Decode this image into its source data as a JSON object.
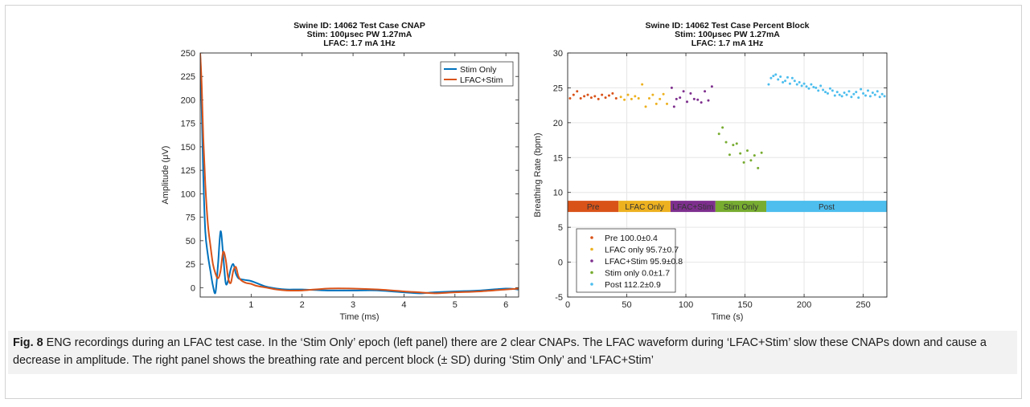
{
  "chart_data": [
    {
      "type": "line",
      "title_lines": [
        "Swine ID: 14062 Test Case CNAP",
        "Stim: 100μsec PW  1.27mA",
        "LFAC: 1.7 mA  1Hz"
      ],
      "xlabel": "Time (ms)",
      "ylabel": "Amplitude (μV)",
      "xlim": [
        0,
        6.25
      ],
      "ylim": [
        -10,
        250
      ],
      "xticks": [
        1,
        2,
        3,
        4,
        5,
        6
      ],
      "yticks": [
        0,
        25,
        50,
        75,
        100,
        125,
        150,
        175,
        200,
        225,
        250
      ],
      "grid": false,
      "legend_position": "top-right",
      "series": [
        {
          "name": "Stim Only",
          "color": "#0072bd",
          "x": [
            0,
            0.03,
            0.06,
            0.1,
            0.15,
            0.2,
            0.25,
            0.3,
            0.35,
            0.4,
            0.45,
            0.5,
            0.55,
            0.6,
            0.65,
            0.7,
            0.75,
            0.8,
            0.9,
            1.0,
            1.1,
            1.3,
            1.5,
            1.7,
            2.0,
            2.5,
            3.0,
            3.5,
            4.0,
            4.3,
            4.6,
            5.0,
            5.5,
            6.0,
            6.25
          ],
          "y": [
            248,
            190,
            120,
            60,
            35,
            18,
            2,
            -5,
            25,
            60,
            35,
            5,
            8,
            20,
            25,
            15,
            10,
            9,
            8,
            7,
            5,
            1,
            -1,
            -2,
            -2,
            -3,
            -3,
            -3,
            -5,
            -6,
            -5,
            -4,
            -3,
            -1,
            -2
          ]
        },
        {
          "name": "LFAC+Stim",
          "color": "#d95319",
          "x": [
            0,
            0.03,
            0.06,
            0.1,
            0.15,
            0.2,
            0.25,
            0.3,
            0.35,
            0.4,
            0.45,
            0.5,
            0.55,
            0.6,
            0.65,
            0.7,
            0.75,
            0.8,
            0.9,
            1.0,
            1.1,
            1.3,
            1.5,
            1.7,
            2.0,
            2.5,
            3.0,
            3.5,
            4.0,
            4.3,
            4.6,
            5.0,
            5.5,
            6.0,
            6.25
          ],
          "y": [
            250,
            215,
            160,
            110,
            68,
            45,
            25,
            15,
            10,
            18,
            38,
            30,
            10,
            5,
            18,
            22,
            12,
            8,
            5,
            4,
            2,
            0,
            -2,
            -3,
            -3,
            -1,
            -1,
            -2,
            -4,
            -5,
            -6,
            -5,
            -4,
            -2,
            -1
          ]
        }
      ]
    },
    {
      "type": "scatter",
      "title_lines": [
        "Swine ID: 14062 Test Case Percent Block",
        "Stim: 100μsec PW  1.27mA",
        "LFAC: 1.7 mA  1Hz"
      ],
      "xlabel": "Time (s)",
      "ylabel": "Breathing Rate (bpm)",
      "xlim": [
        0,
        270
      ],
      "ylim": [
        -5,
        30
      ],
      "xticks": [
        0,
        50,
        100,
        150,
        200,
        250
      ],
      "yticks": [
        -5,
        0,
        5,
        10,
        15,
        20,
        25,
        30
      ],
      "grid": true,
      "legend_position": "bottom-left",
      "epoch_bar": {
        "y": 8,
        "segments": [
          {
            "label": "Pre",
            "start": 0,
            "end": 43,
            "color": "#d95319"
          },
          {
            "label": "LFAC Only",
            "start": 43,
            "end": 87,
            "color": "#edb120"
          },
          {
            "label": "LFAC+Stim",
            "start": 87,
            "end": 125,
            "color": "#7e2f8e"
          },
          {
            "label": "Stim Only",
            "start": 125,
            "end": 168,
            "color": "#77ac30"
          },
          {
            "label": "Post",
            "start": 168,
            "end": 270,
            "color": "#4dbeee"
          }
        ]
      },
      "series": [
        {
          "name": "Pre 100.0±0.4",
          "color": "#d95319",
          "x": [
            2,
            5,
            8,
            11,
            14,
            17,
            20,
            23,
            26,
            29,
            32,
            35,
            38,
            41
          ],
          "y": [
            23.5,
            24.0,
            24.5,
            23.5,
            23.8,
            24.0,
            23.6,
            23.8,
            23.4,
            24.0,
            23.6,
            23.9,
            24.2,
            23.5
          ]
        },
        {
          "name": "LFAC only 95.7±0.7",
          "color": "#edb120",
          "x": [
            45,
            48,
            51,
            54,
            57,
            60,
            63,
            66,
            69,
            72,
            75,
            78,
            81,
            84
          ],
          "y": [
            23.7,
            23.3,
            24.0,
            23.4,
            23.8,
            23.5,
            25.5,
            22.3,
            23.5,
            24.0,
            22.7,
            23.4,
            24.1,
            22.7
          ]
        },
        {
          "name": "LFAC+Stim 95.9±0.8",
          "color": "#7e2f8e",
          "x": [
            88,
            90,
            92,
            95,
            98,
            101,
            104,
            107,
            110,
            113,
            116,
            119,
            122
          ],
          "y": [
            25.0,
            22.3,
            23.4,
            23.6,
            24.5,
            23.0,
            24.2,
            23.4,
            23.3,
            22.9,
            24.5,
            23.2,
            25.2
          ]
        },
        {
          "name": "Stim only 0.0±1.7",
          "color": "#77ac30",
          "x": [
            128,
            131,
            134,
            137,
            140,
            143,
            146,
            149,
            152,
            155,
            158,
            161,
            164
          ],
          "y": [
            18.4,
            19.3,
            17.2,
            15.4,
            16.8,
            17.0,
            15.6,
            14.3,
            16.0,
            14.6,
            15.3,
            13.5,
            15.7
          ]
        },
        {
          "name": "Post 112.2±0.9",
          "color": "#4dbeee",
          "x": [
            170,
            172,
            174,
            176,
            178,
            180,
            182,
            184,
            186,
            188,
            190,
            192,
            194,
            196,
            198,
            200,
            202,
            204,
            206,
            208,
            210,
            212,
            214,
            216,
            218,
            220,
            222,
            224,
            226,
            228,
            230,
            232,
            234,
            236,
            238,
            240,
            242,
            244,
            246,
            248,
            250,
            252,
            254,
            256,
            258,
            260,
            262,
            264,
            266,
            268
          ],
          "y": [
            25.5,
            26.4,
            26.7,
            26.9,
            26.2,
            26.6,
            25.8,
            26.0,
            26.5,
            25.6,
            26.4,
            26.0,
            25.5,
            25.8,
            25.3,
            25.6,
            25.2,
            24.9,
            25.5,
            25.1,
            25.0,
            24.6,
            25.3,
            24.7,
            24.4,
            24.2,
            24.9,
            24.6,
            23.9,
            24.4,
            24.0,
            23.8,
            24.3,
            24.0,
            24.5,
            23.7,
            24.1,
            24.4,
            23.6,
            24.8,
            24.2,
            23.9,
            24.6,
            23.8,
            24.3,
            24.0,
            24.5,
            23.7,
            24.1,
            23.8
          ]
        }
      ]
    }
  ],
  "caption": {
    "label": "Fig. 8",
    "text": "ENG recordings during an LFAC test case. In the ‘Stim Only’ epoch (left panel) there are 2 clear CNAPs. The LFAC waveform during ‘LFAC+Stim’ slow these CNAPs down and cause a decrease in amplitude. The right panel shows the breathing rate and percent block (± SD) during ‘Stim Only’ and ‘LFAC+Stim’"
  }
}
